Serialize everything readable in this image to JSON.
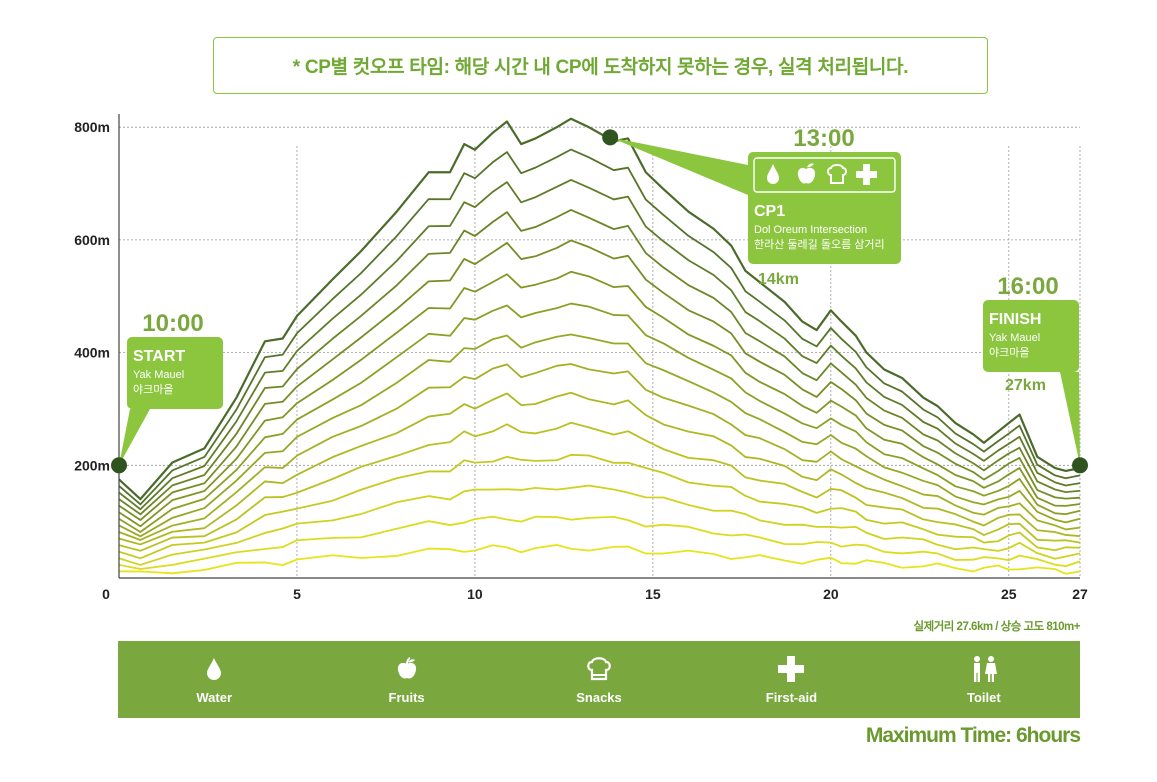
{
  "notice": "* CP별 컷오프 타임: 해당 시간 내 CP에 도착하지 못하는 경우, 실격 처리됩니다.",
  "chart_data": {
    "type": "area",
    "x_ticks": [
      0,
      5,
      10,
      15,
      20,
      25,
      27
    ],
    "y_ticks": [
      "200m",
      "400m",
      "600m",
      "800m"
    ],
    "y_tick_values": [
      200,
      400,
      600,
      800
    ],
    "xlim": [
      0,
      27
    ],
    "ylim": [
      0,
      850
    ],
    "grid": true,
    "colors": {
      "dark": "#4a6b2a",
      "light": "#f2ec1c",
      "accent": "#8cc63f",
      "time": "#7aa83e"
    },
    "profile": {
      "x": [
        0,
        0.6,
        1.5,
        2.4,
        3.3,
        4.1,
        4.6,
        5.0,
        6.0,
        6.8,
        7.8,
        8.7,
        9.3,
        9.7,
        10.0,
        10.5,
        10.9,
        11.3,
        11.7,
        12.3,
        12.7,
        13.2,
        13.9,
        14.3,
        14.8,
        15.3,
        16.0,
        16.7,
        17.2,
        17.6,
        18.0,
        18.7,
        19.2,
        19.6,
        20.0,
        20.3,
        20.7,
        21.0,
        21.5,
        22.0,
        22.6,
        23.0,
        23.5,
        24.0,
        24.3,
        24.7,
        25.0,
        25.3,
        25.8,
        26.3,
        26.6,
        27.0
      ],
      "elev": [
        175,
        140,
        205,
        230,
        320,
        420,
        425,
        465,
        530,
        580,
        650,
        720,
        720,
        770,
        760,
        790,
        810,
        770,
        780,
        800,
        815,
        800,
        775,
        780,
        720,
        690,
        650,
        620,
        590,
        545,
        525,
        490,
        455,
        440,
        475,
        455,
        430,
        400,
        370,
        355,
        320,
        305,
        275,
        255,
        240,
        260,
        275,
        290,
        215,
        195,
        190,
        195
      ]
    },
    "contour_levels": 15,
    "checkpoints": [
      {
        "id": "start",
        "km": 0,
        "elev": 200,
        "time": "10:00",
        "title": "START",
        "name_en": "Yak Mauel",
        "name_ko": "야크마을",
        "dist": ""
      },
      {
        "id": "cp1",
        "km": 13.8,
        "elev": 782,
        "time": "13:00",
        "title": "CP1",
        "name_en": "Dol Oreum Intersection",
        "name_ko": "한라산 둘레길 돌오름 삼거리",
        "dist": "14km"
      },
      {
        "id": "finish",
        "km": 27,
        "elev": 200,
        "time": "16:00",
        "title": "FINISH",
        "name_en": "Yak Mauel",
        "name_ko": "야크마을",
        "dist": "27km"
      }
    ],
    "cp1_services": [
      "water-icon",
      "fruits-icon",
      "snacks-icon",
      "first-aid-icon"
    ]
  },
  "stats": "실제거리 27.6km / 상승 고도 810m+",
  "legend": [
    {
      "icon": "water-icon",
      "label": "Water"
    },
    {
      "icon": "fruits-icon",
      "label": "Fruits"
    },
    {
      "icon": "snacks-icon",
      "label": "Snacks"
    },
    {
      "icon": "first-aid-icon",
      "label": "First-aid"
    },
    {
      "icon": "toilet-icon",
      "label": "Toilet"
    }
  ],
  "max_time": "Maximum Time: 6hours"
}
